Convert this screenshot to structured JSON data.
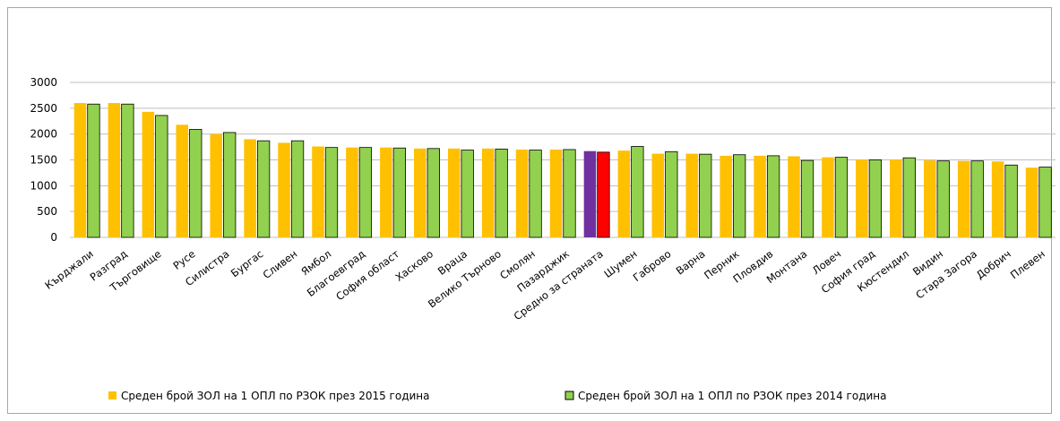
{
  "chart_data": {
    "type": "bar",
    "title": "",
    "xlabel": "",
    "ylabel": "",
    "ylim": [
      0,
      3000
    ],
    "yticks": [
      0,
      500,
      1000,
      1500,
      2000,
      2500,
      3000
    ],
    "grid": true,
    "legend_position": "bottom",
    "categories": [
      "Кърджали",
      "Разград",
      "Търговище",
      "Русе",
      "Силистра",
      "Бургас",
      "Сливен",
      "Ямбол",
      "Благоевград",
      "София област",
      "Хасково",
      "Враца",
      "Велико Търново",
      "Смолян",
      "Пазарджик",
      "Средно за страната",
      "Шумен",
      "Габрово",
      "Варна",
      "Перник",
      "Пловдив",
      "Монтана",
      "Ловеч",
      "София град",
      "Кюстендил",
      "Видин",
      "Стара Загора",
      "Добрич",
      "Плевен"
    ],
    "series": [
      {
        "name": "Среден брой ЗОЛ на 1 ОПЛ по РЗОК през 2015 година",
        "color": "#FFC000",
        "values": [
          2600,
          2600,
          2430,
          2180,
          2000,
          1900,
          1830,
          1760,
          1740,
          1740,
          1720,
          1720,
          1720,
          1700,
          1700,
          1670,
          1680,
          1620,
          1620,
          1580,
          1580,
          1570,
          1550,
          1510,
          1510,
          1490,
          1480,
          1470,
          1350
        ]
      },
      {
        "name": "Среден брой ЗОЛ на 1 ОПЛ по РЗОК през 2014 година",
        "color": "#92D050",
        "values": [
          2580,
          2580,
          2360,
          2090,
          2030,
          1870,
          1870,
          1740,
          1740,
          1730,
          1720,
          1690,
          1710,
          1690,
          1700,
          1650,
          1760,
          1660,
          1610,
          1600,
          1580,
          1490,
          1550,
          1500,
          1540,
          1480,
          1480,
          1400,
          1360
        ]
      }
    ],
    "highlight": {
      "category": "Средно за страната",
      "colors": [
        "#7030A0",
        "#FF0000"
      ]
    }
  }
}
